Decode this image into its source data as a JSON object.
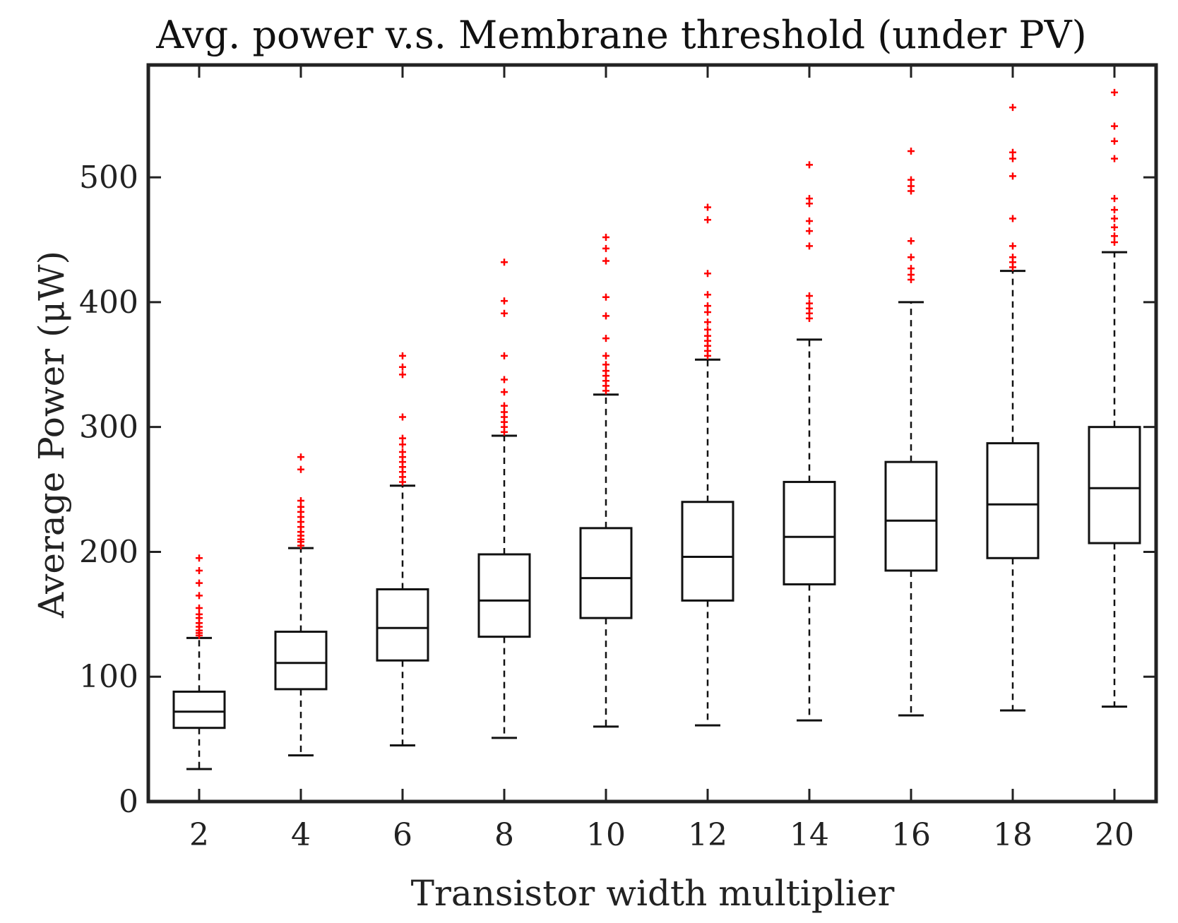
{
  "chart_data": {
    "type": "box",
    "title": "Avg. power v.s. Membrane threshold (under PV)",
    "xlabel": "Transistor width multiplier",
    "ylabel": "Average Power (μW)",
    "ylim": [
      0,
      590
    ],
    "yticks": [
      0,
      100,
      200,
      300,
      400,
      500
    ],
    "categories": [
      "2",
      "4",
      "6",
      "8",
      "10",
      "12",
      "14",
      "16",
      "18",
      "20"
    ],
    "boxes": [
      {
        "x": "2",
        "whisker_low": 26,
        "q1": 59,
        "median": 72,
        "q3": 88,
        "whisker_high": 131,
        "outliers": [
          133,
          135,
          137,
          140,
          143,
          147,
          150,
          155,
          165,
          175,
          185,
          195
        ]
      },
      {
        "x": "4",
        "whisker_low": 37,
        "q1": 90,
        "median": 111,
        "q3": 136,
        "whisker_high": 203,
        "outliers": [
          205,
          208,
          210,
          213,
          216,
          220,
          224,
          228,
          232,
          236,
          241,
          266,
          276
        ]
      },
      {
        "x": "6",
        "whisker_low": 45,
        "q1": 113,
        "median": 139,
        "q3": 170,
        "whisker_high": 253,
        "outliers": [
          256,
          260,
          264,
          268,
          272,
          276,
          280,
          286,
          291,
          308,
          342,
          348,
          357
        ]
      },
      {
        "x": "8",
        "whisker_low": 51,
        "q1": 132,
        "median": 161,
        "q3": 198,
        "whisker_high": 293,
        "outliers": [
          296,
          300,
          304,
          308,
          312,
          317,
          328,
          338,
          357,
          391,
          401,
          432
        ]
      },
      {
        "x": "10",
        "whisker_low": 60,
        "q1": 147,
        "median": 179,
        "q3": 219,
        "whisker_high": 326,
        "outliers": [
          329,
          333,
          337,
          341,
          345,
          350,
          357,
          371,
          389,
          404,
          433,
          443,
          452
        ]
      },
      {
        "x": "12",
        "whisker_low": 61,
        "q1": 161,
        "median": 196,
        "q3": 240,
        "whisker_high": 354,
        "outliers": [
          357,
          361,
          365,
          369,
          373,
          378,
          384,
          392,
          397,
          406,
          423,
          466,
          476
        ]
      },
      {
        "x": "14",
        "whisker_low": 65,
        "q1": 174,
        "median": 212,
        "q3": 256,
        "whisker_high": 370,
        "outliers": [
          387,
          391,
          395,
          399,
          405,
          445,
          457,
          465,
          479,
          483,
          510
        ]
      },
      {
        "x": "16",
        "whisker_low": 69,
        "q1": 185,
        "median": 225,
        "q3": 272,
        "whisker_high": 400,
        "outliers": [
          418,
          422,
          427,
          436,
          449,
          489,
          493,
          498,
          521
        ]
      },
      {
        "x": "18",
        "whisker_low": 73,
        "q1": 195,
        "median": 238,
        "q3": 287,
        "whisker_high": 425,
        "outliers": [
          428,
          432,
          436,
          445,
          467,
          501,
          515,
          520,
          556
        ]
      },
      {
        "x": "20",
        "whisker_low": 76,
        "q1": 207,
        "median": 251,
        "q3": 300,
        "whisker_high": 440,
        "outliers": [
          448,
          453,
          460,
          467,
          474,
          483,
          515,
          529,
          541,
          568
        ]
      }
    ]
  },
  "colors": {
    "box": "#111111",
    "outlier": "#ff0000",
    "axis": "#222222"
  }
}
